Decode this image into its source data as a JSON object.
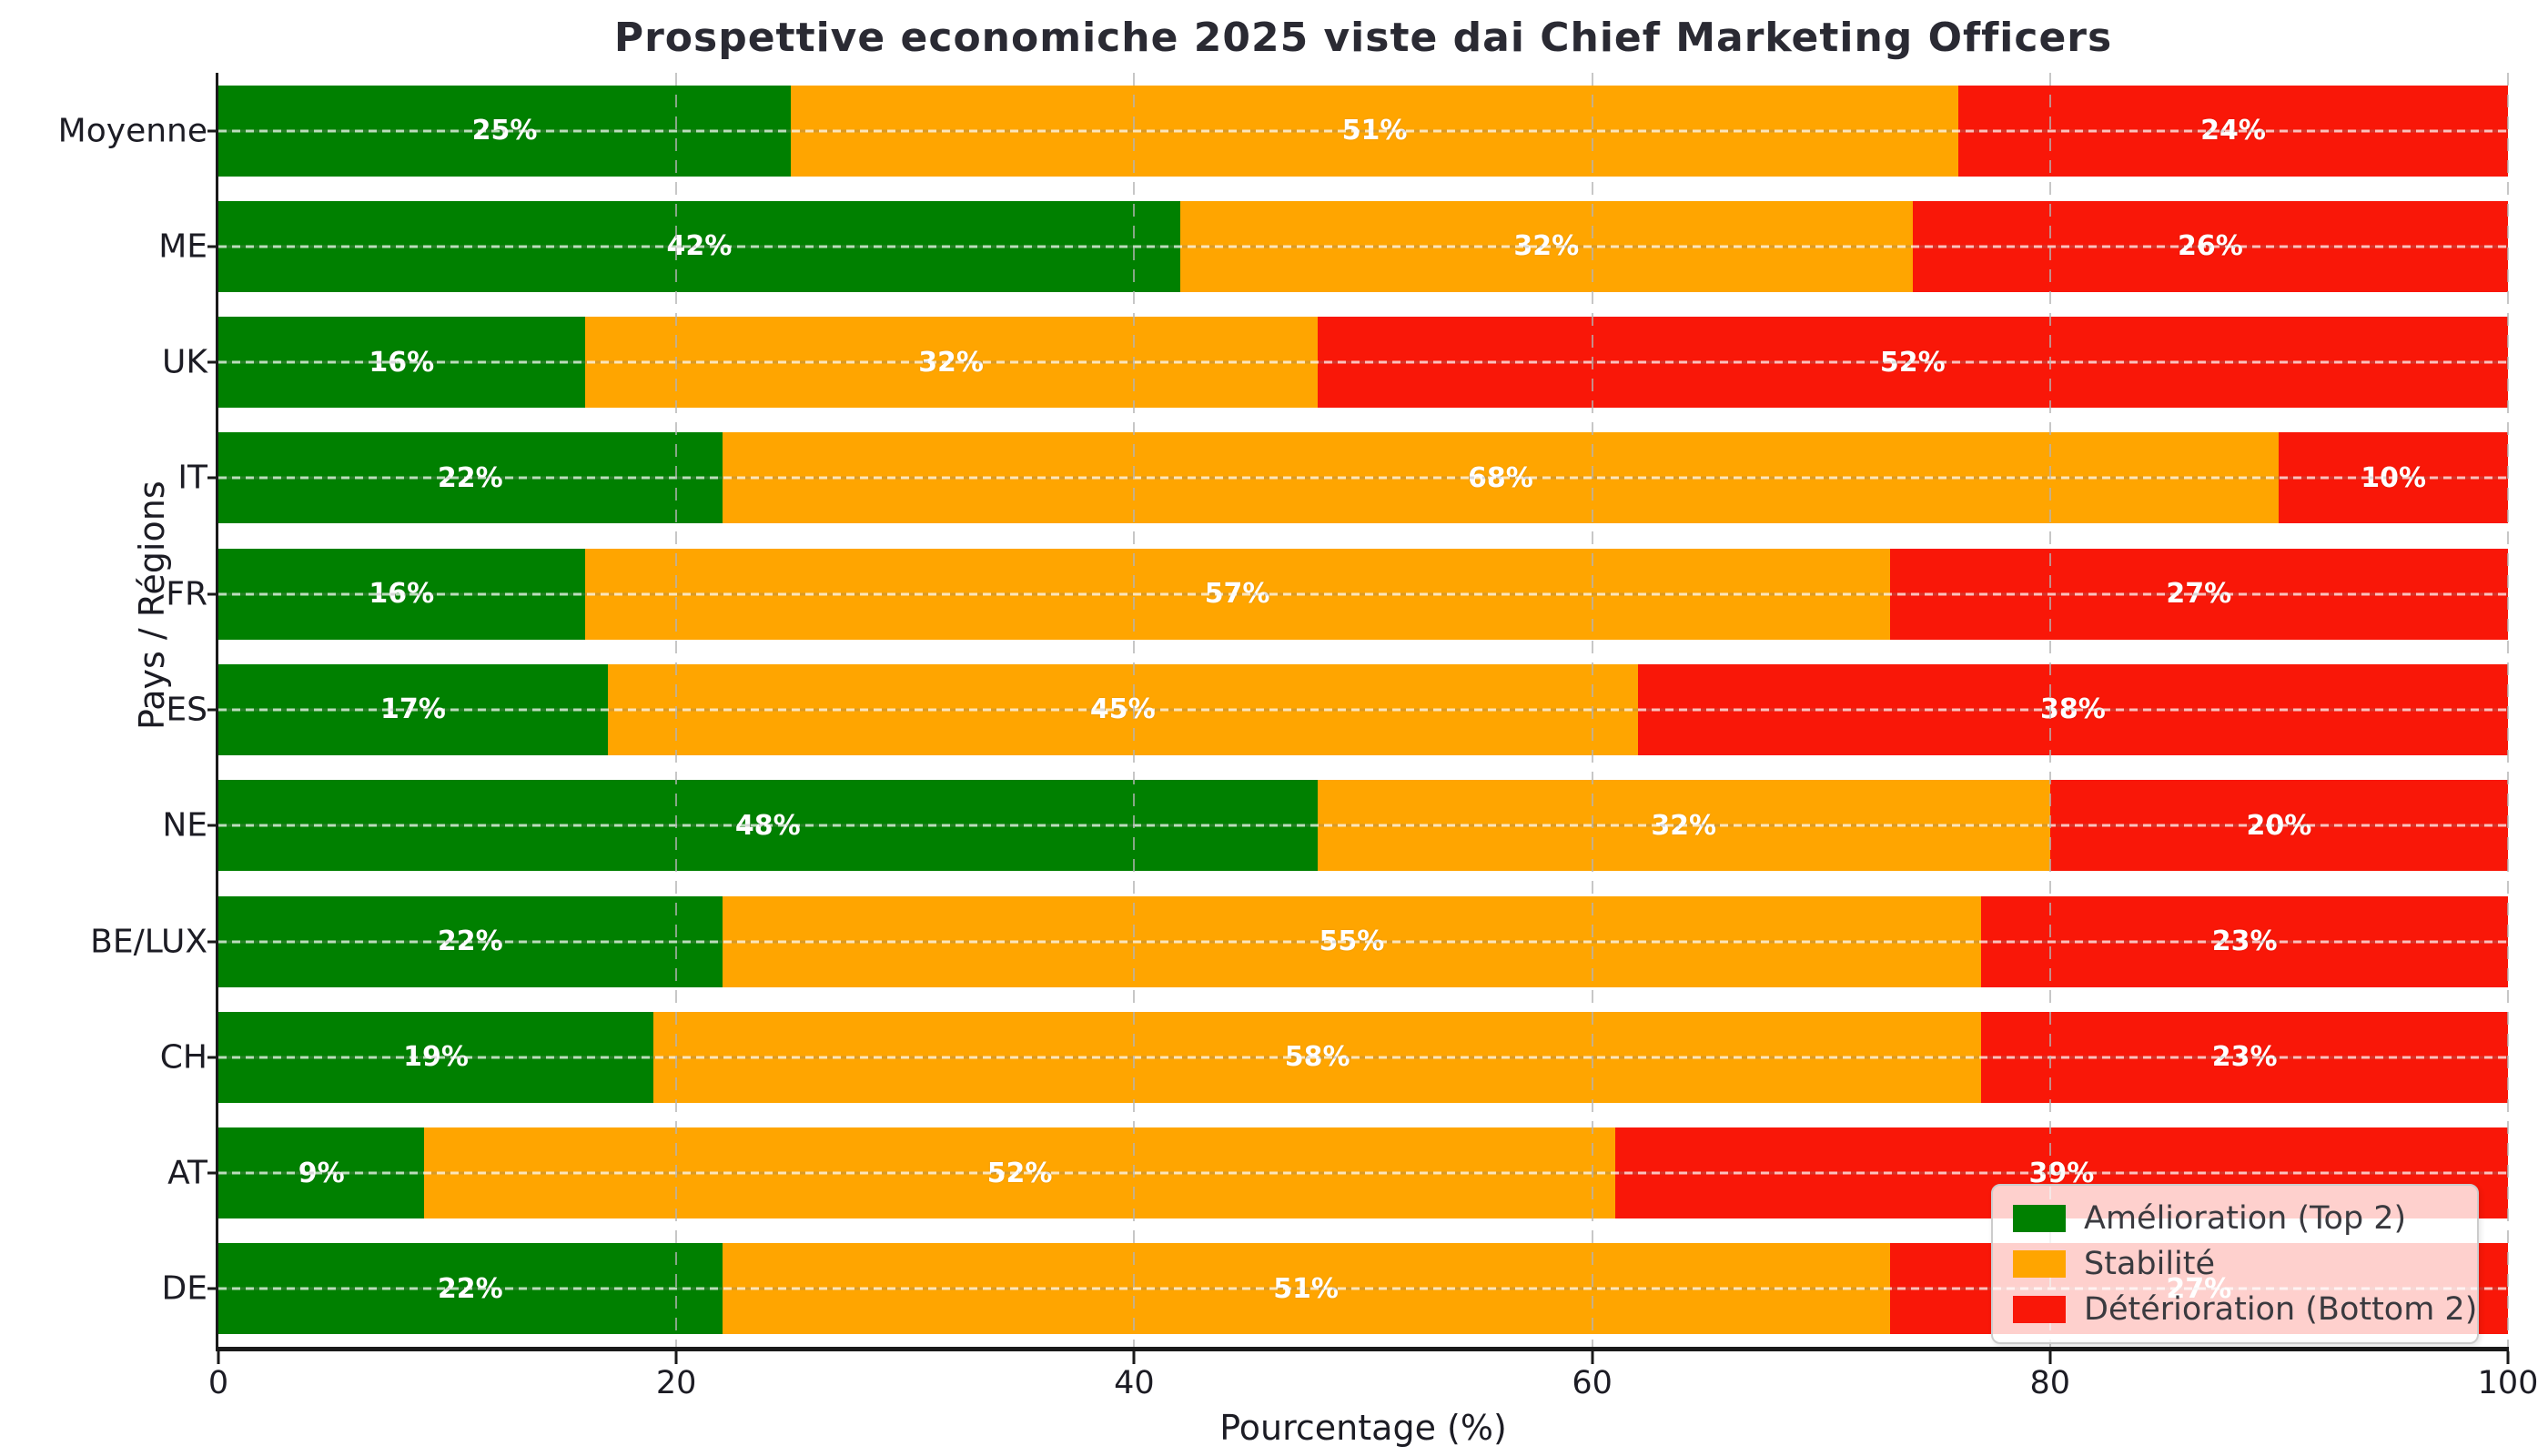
{
  "chart_data": {
    "type": "bar",
    "orientation": "horizontal",
    "stacked": true,
    "title": "Prospettive economiche 2025 viste dai Chief Marketing Officers",
    "xlabel": "Pourcentage (%)",
    "ylabel": "Pays / Régions",
    "xlim": [
      0,
      100
    ],
    "x_ticks": [
      0,
      20,
      40,
      60,
      80,
      100
    ],
    "grid": "dashed vertical at 20/40/60/80/100, dotted horizontal through each bar center",
    "legend_position": "lower right, semi-transparent white box",
    "categories_top_to_bottom": [
      "Moyenne",
      "ME",
      "UK",
      "IT",
      "FR",
      "ES",
      "NE",
      "BE/LUX",
      "CH",
      "AT",
      "DE"
    ],
    "series": [
      {
        "name": "Amélioration (Top 2)",
        "color": "#008000",
        "values": [
          25,
          42,
          16,
          22,
          16,
          17,
          48,
          22,
          19,
          9,
          22
        ]
      },
      {
        "name": "Stabilité",
        "color": "#ffa500",
        "values": [
          51,
          32,
          32,
          68,
          57,
          45,
          32,
          55,
          58,
          52,
          51
        ]
      },
      {
        "name": "Détérioration (Bottom 2)",
        "color": "#f91708",
        "values": [
          24,
          26,
          52,
          10,
          27,
          38,
          20,
          23,
          23,
          39,
          27
        ]
      }
    ],
    "value_label_format": "{value}%",
    "value_label_color": "#ffffff",
    "colors": {
      "background": "#ffffff",
      "title_text": "#2a2a33",
      "axis_text": "#1c1c24",
      "spine": "#1a1a1a",
      "gridline": "#c8c8c8",
      "legend_border": "#cccccc"
    }
  }
}
